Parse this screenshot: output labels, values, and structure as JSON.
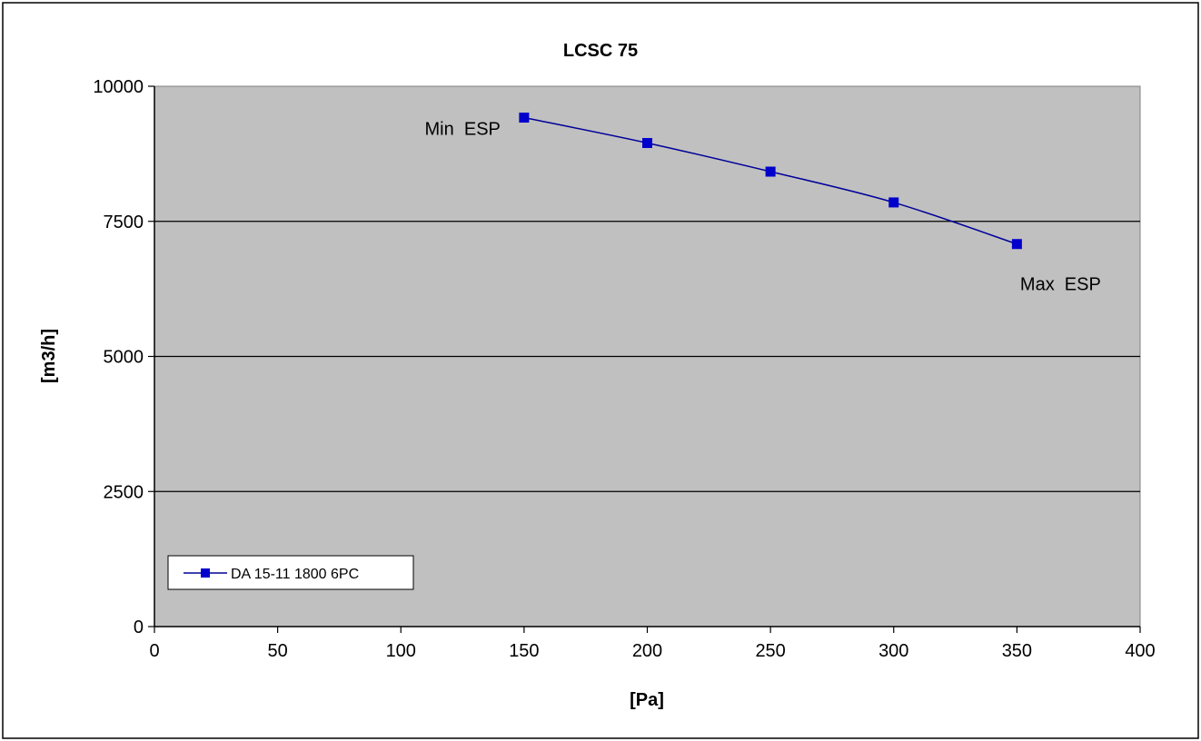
{
  "chart_data": {
    "type": "line",
    "title": "LCSC 75",
    "xlabel": "[Pa]",
    "ylabel": "[m3/h]",
    "xlim": [
      0,
      400
    ],
    "ylim": [
      0,
      10000
    ],
    "x_ticks": [
      0,
      50,
      100,
      150,
      200,
      250,
      300,
      350,
      400
    ],
    "y_ticks": [
      0,
      2500,
      5000,
      7500,
      10000
    ],
    "x_tick_labels": [
      "0",
      "50",
      "100",
      "150",
      "200",
      "250",
      "300",
      "350",
      "400"
    ],
    "y_tick_labels": [
      "0",
      "2500",
      "5000",
      "7500",
      "10000"
    ],
    "grid": "horizontal",
    "legend_position": "bottom-left",
    "series": [
      {
        "name": "DA 15-11 1800 6PC",
        "color": "#0000cc",
        "marker": "square",
        "x": [
          150,
          200,
          250,
          300,
          350
        ],
        "y": [
          9420,
          8950,
          8420,
          7850,
          7080
        ]
      }
    ],
    "annotations": [
      {
        "text": "Min  ESP",
        "x": 150,
        "y": 9420,
        "anchor": "left-of-point"
      },
      {
        "text": "Max  ESP",
        "x": 350,
        "y": 7080,
        "anchor": "below-point"
      }
    ],
    "colors": {
      "plot_background": "#c0c0c0",
      "gridline": "#000000",
      "series_line": "#000099",
      "marker": "#0000cc"
    }
  }
}
